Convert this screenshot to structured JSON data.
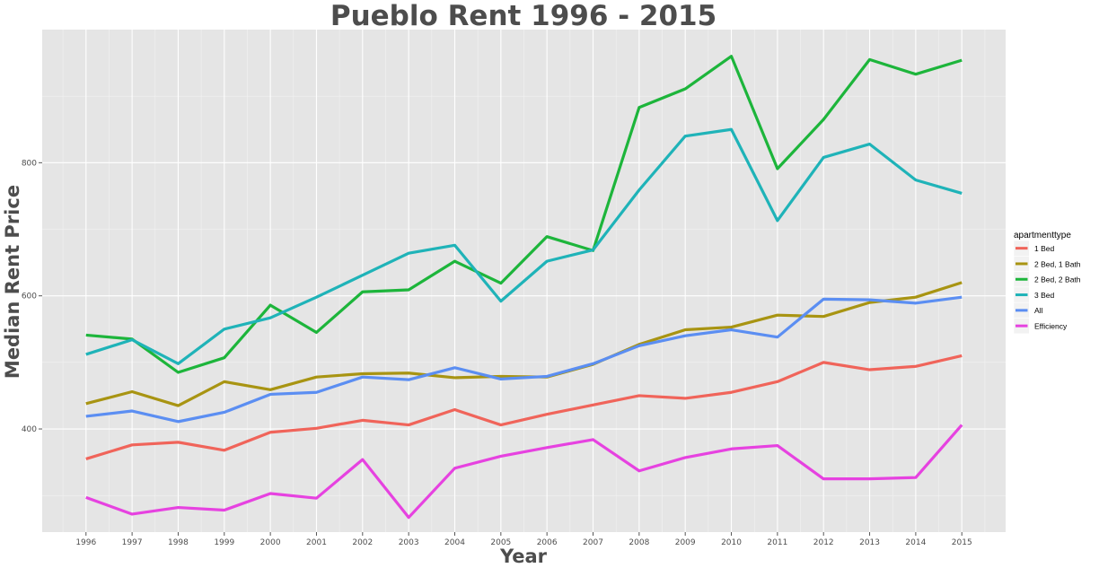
{
  "chart_data": {
    "type": "line",
    "title": "Pueblo Rent 1996 - 2015",
    "xlabel": "Year",
    "ylabel": "Median Rent Price",
    "x": [
      1996,
      1997,
      1998,
      1999,
      2000,
      2001,
      2002,
      2003,
      2004,
      2005,
      2006,
      2007,
      2008,
      2009,
      2010,
      2011,
      2012,
      2013,
      2014,
      2015
    ],
    "x_tick_labels": [
      "1996",
      "1997",
      "1998",
      "1999",
      "2000",
      "2001",
      "2002",
      "2003",
      "2004",
      "2005",
      "2006",
      "2007",
      "2008",
      "2009",
      "2010",
      "2011",
      "2012",
      "2013",
      "2014",
      "2015"
    ],
    "xlim": [
      1995.05,
      2015.95
    ],
    "ylim": [
      245,
      1000
    ],
    "y_ticks": [
      400,
      600,
      800
    ],
    "y_tick_labels": [
      "400",
      "600",
      "800"
    ],
    "grid": true,
    "legend": {
      "title": "apartmenttype",
      "position": "right"
    },
    "series": [
      {
        "name": "1 Bed",
        "color": "#f0645a",
        "values": [
          355,
          376,
          380,
          368,
          395,
          401,
          413,
          406,
          429,
          406,
          422,
          436,
          450,
          446,
          455,
          471,
          500,
          489,
          494,
          510
        ]
      },
      {
        "name": "2 Bed, 1 Bath",
        "color": "#a89412",
        "values": [
          438,
          456,
          435,
          471,
          459,
          478,
          483,
          484,
          477,
          479,
          478,
          497,
          527,
          549,
          553,
          571,
          569,
          590,
          598,
          620
        ]
      },
      {
        "name": "2 Bed, 2 Bath",
        "color": "#1db53b",
        "values": [
          541,
          535,
          485,
          507,
          586,
          545,
          606,
          609,
          652,
          619,
          689,
          668,
          883,
          911,
          960,
          791,
          865,
          955,
          933,
          954
        ]
      },
      {
        "name": "3 Bed",
        "color": "#1fb3b8",
        "values": [
          512,
          534,
          498,
          550,
          567,
          598,
          631,
          664,
          676,
          592,
          652,
          669,
          759,
          840,
          850,
          713,
          808,
          828,
          774,
          754
        ]
      },
      {
        "name": "All",
        "color": "#5b8ef2",
        "values": [
          419,
          427,
          411,
          425,
          452,
          455,
          478,
          474,
          492,
          475,
          479,
          498,
          525,
          540,
          549,
          538,
          595,
          594,
          589,
          598
        ]
      },
      {
        "name": "Efficiency",
        "color": "#e642e0",
        "values": [
          297,
          272,
          282,
          278,
          303,
          296,
          354,
          267,
          341,
          359,
          372,
          384,
          337,
          357,
          370,
          375,
          325,
          325,
          327,
          406
        ]
      }
    ]
  }
}
